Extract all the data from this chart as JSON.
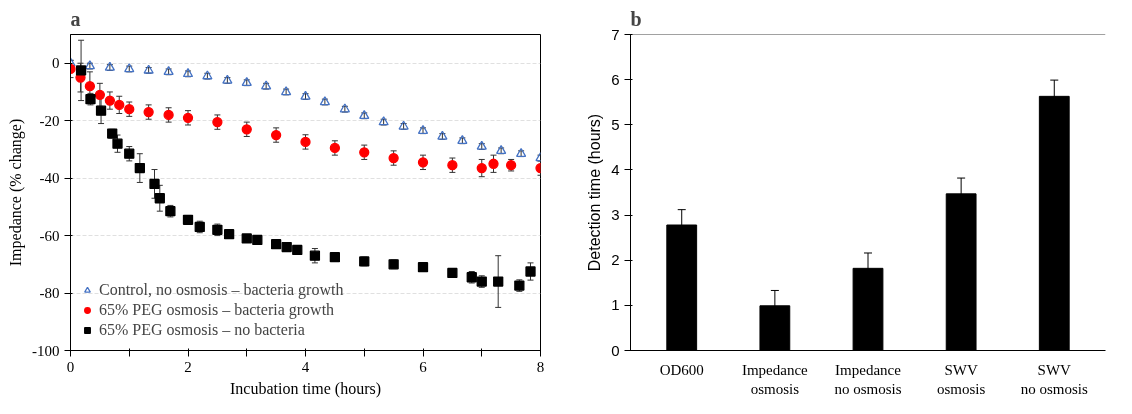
{
  "chart_data": [
    {
      "type": "scatter",
      "title": "a",
      "xlabel": "Incubation time (hours)",
      "ylabel": "Impedance (% change)",
      "xlim": [
        0,
        8
      ],
      "ylim": [
        -100,
        10
      ],
      "xticks": [
        0,
        {
          "value": 1,
          "label": null
        },
        2,
        {
          "value": 3,
          "label": null
        },
        4,
        {
          "value": 5,
          "label": null
        },
        6,
        {
          "value": 7,
          "label": null
        },
        8
      ],
      "yticks": [
        -100,
        -80,
        -60,
        -40,
        -20,
        0
      ],
      "grid": "y",
      "legend": "bottom left",
      "series": [
        {
          "name": "Control, no osmosis – bacteria growth",
          "color": "#4472c4",
          "marker": "triangle",
          "x": [
            0,
            0.33,
            0.67,
            1.0,
            1.33,
            1.67,
            2.0,
            2.33,
            2.67,
            3.0,
            3.33,
            3.67,
            4.0,
            4.33,
            4.67,
            5.0,
            5.33,
            5.67,
            6.0,
            6.33,
            6.67,
            7.0,
            7.33,
            7.67,
            8.0
          ],
          "values": [
            0,
            -1,
            -1.5,
            -2,
            -2.5,
            -3,
            -3.7,
            -4.5,
            -6,
            -6.8,
            -8,
            -10,
            -11.6,
            -13.5,
            -16,
            -18.3,
            -20.5,
            -22,
            -23.5,
            -25.5,
            -27,
            -29,
            -30.5,
            -31.5,
            -33
          ],
          "errors": [
            1,
            1,
            1,
            1,
            1,
            1,
            1,
            1,
            1,
            1,
            1,
            1,
            1,
            1,
            1,
            1,
            1,
            1,
            1,
            1,
            1,
            1,
            1,
            1,
            1
          ]
        },
        {
          "name": "65% PEG osmosis – bacteria growth",
          "color": "#ff0000",
          "marker": "circle",
          "x": [
            0,
            0.17,
            0.33,
            0.5,
            0.67,
            0.83,
            1.0,
            1.33,
            1.67,
            2.0,
            2.5,
            3.0,
            3.5,
            4.0,
            4.5,
            5.0,
            5.5,
            6.0,
            6.5,
            7.0,
            7.2,
            7.5,
            8.0
          ],
          "values": [
            -2,
            -5,
            -8,
            -11,
            -13,
            -14.5,
            -16,
            -17,
            -18,
            -19,
            -20.5,
            -23,
            -25,
            -27.4,
            -29.5,
            -31,
            -33,
            -34.5,
            -35.5,
            -36.5,
            -35,
            -35.5,
            -36.5
          ],
          "errors": [
            3,
            5,
            5,
            4,
            3,
            3,
            2.5,
            2.5,
            2.5,
            2.5,
            2.5,
            2.5,
            2.5,
            2.5,
            2.5,
            2.5,
            2.5,
            2.5,
            2.5,
            3,
            3,
            2,
            2.5
          ]
        },
        {
          "name": "65% PEG osmosis – no bacteria",
          "color": "#000000",
          "marker": "square",
          "x": [
            0.18,
            0.34,
            0.52,
            0.71,
            0.8,
            1.0,
            1.18,
            1.43,
            1.52,
            1.7,
            2.0,
            2.2,
            2.5,
            2.7,
            3.0,
            3.18,
            3.5,
            3.68,
            3.86,
            4.16,
            4.5,
            5.0,
            5.5,
            6.0,
            6.5,
            6.83,
            7.0,
            7.28,
            7.64,
            7.83
          ],
          "values": [
            -2.5,
            -12.5,
            -16.5,
            -24.5,
            -28,
            -31.5,
            -36.5,
            -42,
            -47,
            -51.5,
            -54.5,
            -57,
            -58,
            -59.5,
            -61,
            -61.5,
            -63,
            -64,
            -65,
            -67,
            -67.5,
            -69,
            -70,
            -71,
            -73,
            -74.5,
            -76,
            -76,
            -77.4,
            -72.5
          ],
          "errors": [
            10.5,
            2,
            4.5,
            1.5,
            3,
            2.5,
            5,
            5,
            4.5,
            2,
            1.5,
            2,
            2,
            1.5,
            1,
            1,
            1,
            1,
            1,
            2.5,
            1.5,
            1.5,
            1.5,
            1.5,
            1.5,
            2,
            2,
            9,
            2,
            3
          ]
        }
      ]
    },
    {
      "type": "bar",
      "title": "b",
      "ylabel": "Detection time (hours)",
      "ylim": [
        0,
        7
      ],
      "yticks": [
        0,
        1,
        2,
        3,
        4,
        5,
        6,
        7
      ],
      "grid": false,
      "categories": [
        "OD600",
        "Impedance\nosmosis",
        "Impedance\nno osmosis",
        "SWV\nosmosis",
        "SWV\nno osmosis"
      ],
      "series": [
        {
          "color": "#000000",
          "values": [
            2.78,
            0.99,
            1.82,
            3.47,
            5.63
          ],
          "errors": [
            0.34,
            0.34,
            0.34,
            0.35,
            0.36
          ]
        }
      ]
    }
  ]
}
